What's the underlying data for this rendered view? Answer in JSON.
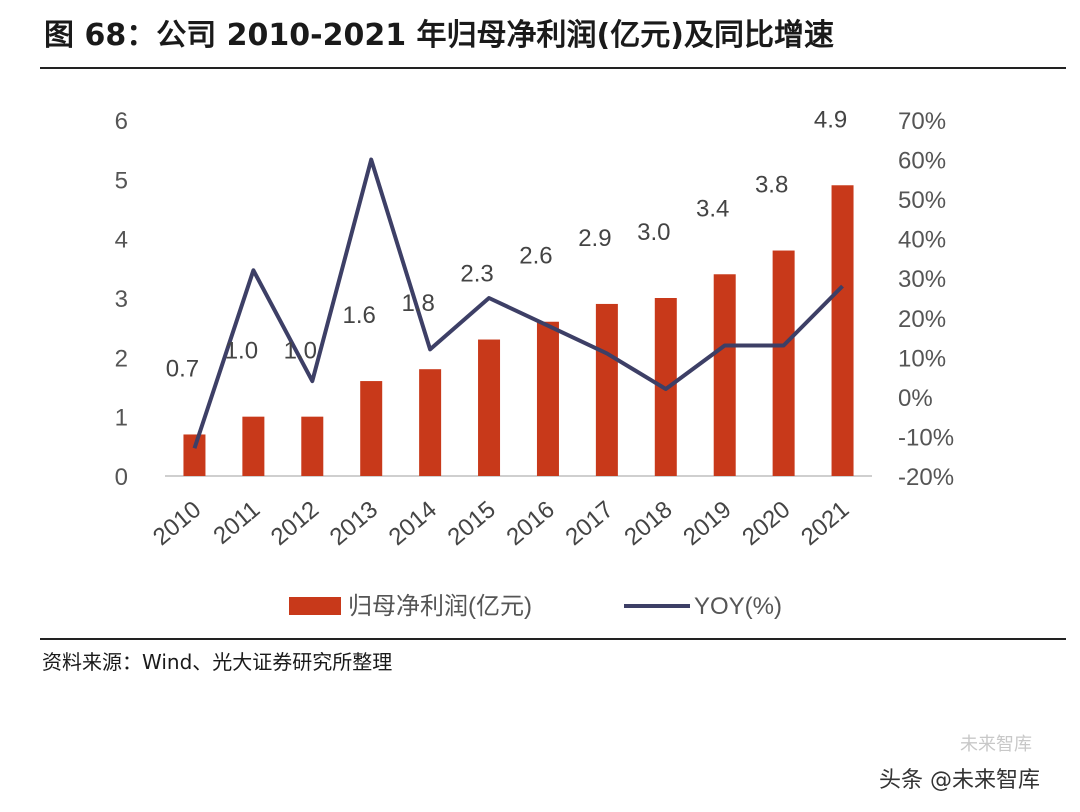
{
  "header": {
    "title": "图 68：公司 2010-2021 年归母净利润(亿元)及同比增速"
  },
  "footer": {
    "source": "资料来源：Wind、光大证券研究所整理",
    "watermark": "头条 @未来智库",
    "watermark_faint": "未来智库"
  },
  "chart_data": {
    "type": "bar",
    "title": "公司 2010-2021 年归母净利润(亿元)及同比增速",
    "categories": [
      "2010",
      "2011",
      "2012",
      "2013",
      "2014",
      "2015",
      "2016",
      "2017",
      "2018",
      "2019",
      "2020",
      "2021"
    ],
    "series": [
      {
        "name": "归母净利润(亿元)",
        "type": "bar",
        "axis": "left",
        "values": [
          0.7,
          1.0,
          1.0,
          1.6,
          1.8,
          2.3,
          2.6,
          2.9,
          3.0,
          3.4,
          3.8,
          4.9
        ],
        "labels": [
          "0.7",
          "1.0",
          "1.0",
          "1.6",
          "1.8",
          "2.3",
          "2.6",
          "2.9",
          "3.0",
          "3.4",
          "3.8",
          "4.9"
        ],
        "color": "#C8391A"
      },
      {
        "name": "YOY(%)",
        "type": "line",
        "axis": "right",
        "values": [
          -13,
          32,
          4,
          60,
          12,
          25,
          18,
          11,
          2,
          13,
          13,
          28
        ],
        "color": "#3D3F66"
      }
    ],
    "ylim_left": [
      0,
      6
    ],
    "yticks_left": [
      "0",
      "1",
      "2",
      "3",
      "4",
      "5",
      "6"
    ],
    "ylim_right": [
      -20,
      70
    ],
    "yticks_right": [
      "-20%",
      "-10%",
      "0%",
      "10%",
      "20%",
      "30%",
      "40%",
      "50%",
      "60%",
      "70%"
    ],
    "grid": false,
    "legend": "bottom-center"
  }
}
